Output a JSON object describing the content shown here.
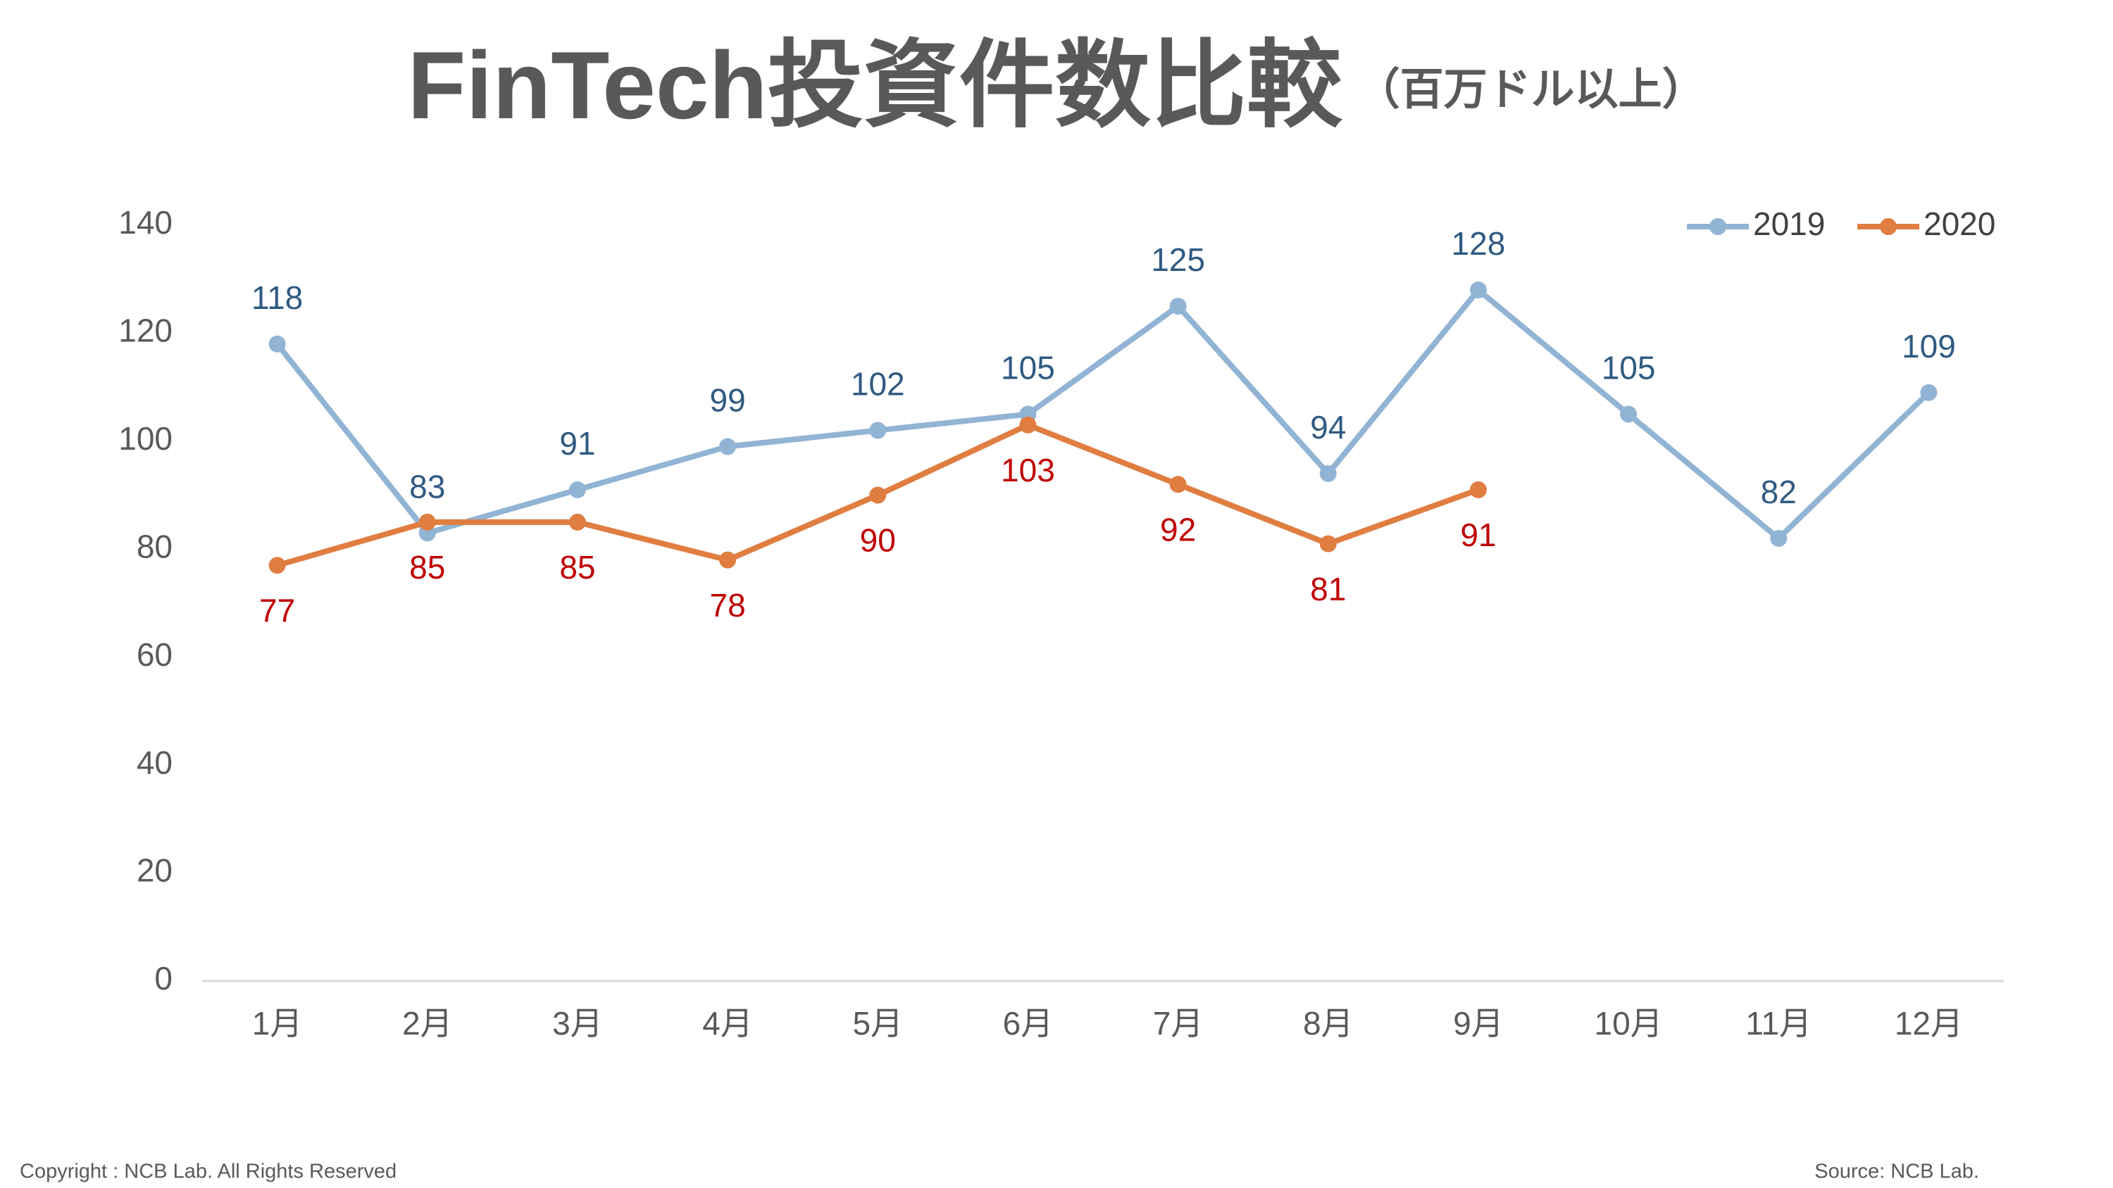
{
  "chart_data": {
    "type": "line",
    "title": "FinTech投資件数比較",
    "subtitle": "（百万ドル以上）",
    "categories": [
      "1月",
      "2月",
      "3月",
      "4月",
      "5月",
      "6月",
      "7月",
      "8月",
      "9月",
      "10月",
      "11月",
      "12月"
    ],
    "series": [
      {
        "name": "2019",
        "color": "#92b4d4",
        "label_color": "#2f5a82",
        "values": [
          118,
          83,
          91,
          99,
          102,
          105,
          125,
          94,
          128,
          105,
          82,
          109
        ]
      },
      {
        "name": "2020",
        "color": "#e07d40",
        "label_color": "#c00000",
        "values": [
          77,
          85,
          85,
          78,
          90,
          103,
          92,
          81,
          91,
          null,
          null,
          null
        ]
      }
    ],
    "ylim": [
      0,
      140
    ],
    "yticks": [
      0,
      20,
      40,
      60,
      80,
      100,
      120,
      140
    ],
    "grid": false,
    "legend": "top-right",
    "footer_left": "Copyright : NCB Lab. All Rights Reserved",
    "footer_right": "Source: NCB Lab."
  }
}
